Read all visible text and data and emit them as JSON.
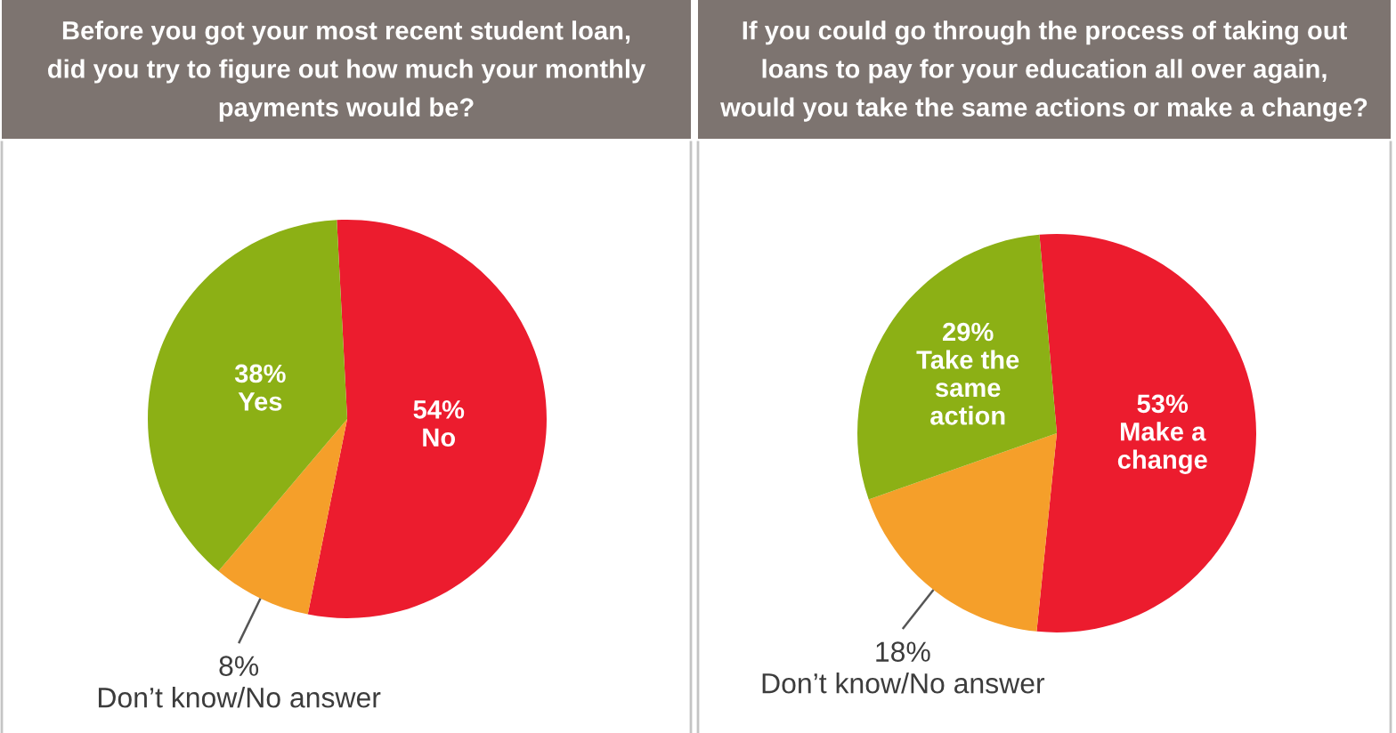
{
  "chart_data": [
    {
      "type": "pie",
      "title": "Before you got your most recent student loan,\ndid you try to figure out how much your monthly\npayments would be?",
      "categories": [
        "No",
        "Don’t know/No answer",
        "Yes"
      ],
      "values": [
        54,
        8,
        38
      ],
      "colors": [
        "#ec1c2e",
        "#f59f2a",
        "#8cb015"
      ],
      "value_labels": [
        "54%",
        "8%",
        "38%"
      ]
    },
    {
      "type": "pie",
      "title": "If you could go through the process of taking out\nloans to pay for your education all over again,\nwould you take the same actions or make a change?",
      "categories": [
        "Make a\nchange",
        "Don’t know/No answer",
        "Take the\nsame\naction"
      ],
      "values": [
        53,
        18,
        29
      ],
      "colors": [
        "#ec1c2e",
        "#f59f2a",
        "#8cb015"
      ],
      "value_labels": [
        "53%",
        "18%",
        "29%"
      ]
    }
  ]
}
